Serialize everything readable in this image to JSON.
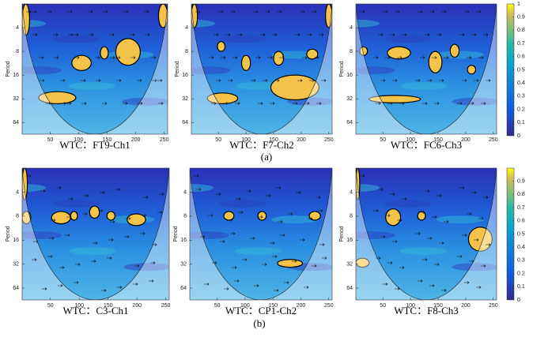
{
  "chart_data": [
    {
      "type": "heatmap",
      "title": "WTC：FT9-Ch1",
      "ylabel": "Period",
      "xlim": [
        1,
        256
      ],
      "ylim": [
        2,
        90
      ],
      "log_y": true,
      "xticks": [
        50,
        100,
        150,
        200,
        250
      ],
      "yticks": [
        4,
        8,
        16,
        32,
        64
      ],
      "regions": [
        {
          "x": [
            88,
            122
          ],
          "period": [
            9,
            14
          ]
        },
        {
          "x": [
            165,
            208
          ],
          "period": [
            5.5,
            12
          ]
        },
        {
          "x": [
            138,
            152
          ],
          "period": [
            7,
            10
          ]
        },
        {
          "x": [
            30,
            95
          ],
          "period": [
            26,
            37
          ]
        },
        {
          "x": [
            1,
            14
          ],
          "period": [
            2,
            5
          ]
        },
        {
          "x": [
            240,
            256
          ],
          "period": [
            2,
            4
          ]
        }
      ]
    },
    {
      "type": "heatmap",
      "title": "WTC：F7-Ch2",
      "ylabel": "Period",
      "xlim": [
        1,
        256
      ],
      "ylim": [
        2,
        90
      ],
      "log_y": true,
      "xticks": [
        50,
        100,
        150,
        200,
        250
      ],
      "yticks": [
        4,
        8,
        16,
        32,
        64
      ],
      "regions": [
        {
          "x": [
            145,
            232
          ],
          "period": [
            16,
            33
          ]
        },
        {
          "x": [
            30,
            85
          ],
          "period": [
            27,
            37
          ]
        },
        {
          "x": [
            92,
            108
          ],
          "period": [
            9,
            14
          ]
        },
        {
          "x": [
            150,
            168
          ],
          "period": [
            8,
            12
          ]
        },
        {
          "x": [
            210,
            230
          ],
          "period": [
            7.5,
            10
          ]
        },
        {
          "x": [
            48,
            62
          ],
          "period": [
            6,
            8
          ]
        },
        {
          "x": [
            1,
            12
          ],
          "period": [
            2,
            4
          ]
        },
        {
          "x": [
            244,
            256
          ],
          "period": [
            2,
            4
          ]
        }
      ]
    },
    {
      "type": "heatmap",
      "title": "WTC：FC6-Ch3",
      "ylabel": "Period",
      "xlim": [
        1,
        256
      ],
      "ylim": [
        2,
        90
      ],
      "log_y": true,
      "xticks": [
        50,
        100,
        150,
        200,
        250
      ],
      "yticks": [
        4,
        8,
        16,
        32,
        64
      ],
      "regions": [
        {
          "x": [
            58,
            100
          ],
          "period": [
            7,
            10
          ]
        },
        {
          "x": [
            133,
            157
          ],
          "period": [
            8,
            15
          ]
        },
        {
          "x": [
            172,
            188
          ],
          "period": [
            6.5,
            9.5
          ]
        },
        {
          "x": [
            25,
            118
          ],
          "period": [
            29,
            36
          ]
        },
        {
          "x": [
            203,
            218
          ],
          "period": [
            12,
            15.5
          ]
        },
        {
          "x": [
            8,
            22
          ],
          "period": [
            7,
            9
          ]
        }
      ]
    },
    {
      "type": "heatmap",
      "title": "WTC：C3-Ch1",
      "ylabel": "Period",
      "xlim": [
        1,
        256
      ],
      "ylim": [
        2,
        90
      ],
      "log_y": true,
      "xticks": [
        50,
        100,
        150,
        200,
        250
      ],
      "yticks": [
        4,
        8,
        16,
        32,
        64
      ],
      "regions": [
        {
          "x": [
            52,
            85
          ],
          "period": [
            7,
            10
          ]
        },
        {
          "x": [
            118,
            135
          ],
          "period": [
            6,
            8.5
          ]
        },
        {
          "x": [
            183,
            215
          ],
          "period": [
            7.5,
            10.5
          ]
        },
        {
          "x": [
            85,
            97
          ],
          "period": [
            7,
            9
          ]
        },
        {
          "x": [
            148,
            162
          ],
          "period": [
            7,
            9
          ]
        },
        {
          "x": [
            1,
            16
          ],
          "period": [
            7,
            10
          ]
        },
        {
          "x": [
            1,
            10
          ],
          "period": [
            2,
            5
          ]
        }
      ]
    },
    {
      "type": "heatmap",
      "title": "WTC：CP1-Ch2",
      "ylabel": "Period",
      "xlim": [
        1,
        256
      ],
      "ylim": [
        2,
        90
      ],
      "log_y": true,
      "xticks": [
        50,
        100,
        150,
        200,
        250
      ],
      "yticks": [
        4,
        8,
        16,
        32,
        64
      ],
      "regions": [
        {
          "x": [
            62,
            80
          ],
          "period": [
            7,
            9
          ]
        },
        {
          "x": [
            123,
            138
          ],
          "period": [
            7,
            9
          ]
        },
        {
          "x": [
            158,
            203
          ],
          "period": [
            28,
            35
          ]
        },
        {
          "x": [
            215,
            235
          ],
          "period": [
            7,
            9
          ]
        }
      ]
    },
    {
      "type": "heatmap",
      "title": "WTC：F8-Ch3",
      "ylabel": "Period",
      "xlim": [
        1,
        256
      ],
      "ylim": [
        2,
        90
      ],
      "log_y": true,
      "xticks": [
        50,
        100,
        150,
        200,
        250
      ],
      "yticks": [
        4,
        8,
        16,
        32,
        64
      ],
      "regions": [
        {
          "x": [
            55,
            82
          ],
          "period": [
            6.5,
            10.5
          ]
        },
        {
          "x": [
            113,
            127
          ],
          "period": [
            7,
            9
          ]
        },
        {
          "x": [
            205,
            248
          ],
          "period": [
            11,
            22
          ]
        },
        {
          "x": [
            1,
            25
          ],
          "period": [
            27,
            35
          ]
        },
        {
          "x": [
            1,
            8
          ],
          "period": [
            2,
            5
          ]
        }
      ]
    }
  ],
  "colorbars": [
    {
      "lim": [
        0,
        1
      ],
      "ticks": [
        0,
        0.1,
        0.2,
        0.3,
        0.4,
        0.5,
        0.6,
        0.7,
        0.8,
        0.9,
        1
      ]
    },
    {
      "lim": [
        0,
        1
      ],
      "ticks": [
        0,
        0.1,
        0.2,
        0.3,
        0.4,
        0.5,
        0.6,
        0.7,
        0.8,
        0.9
      ]
    }
  ],
  "panel_labels": [
    "(a)",
    "(b)"
  ]
}
